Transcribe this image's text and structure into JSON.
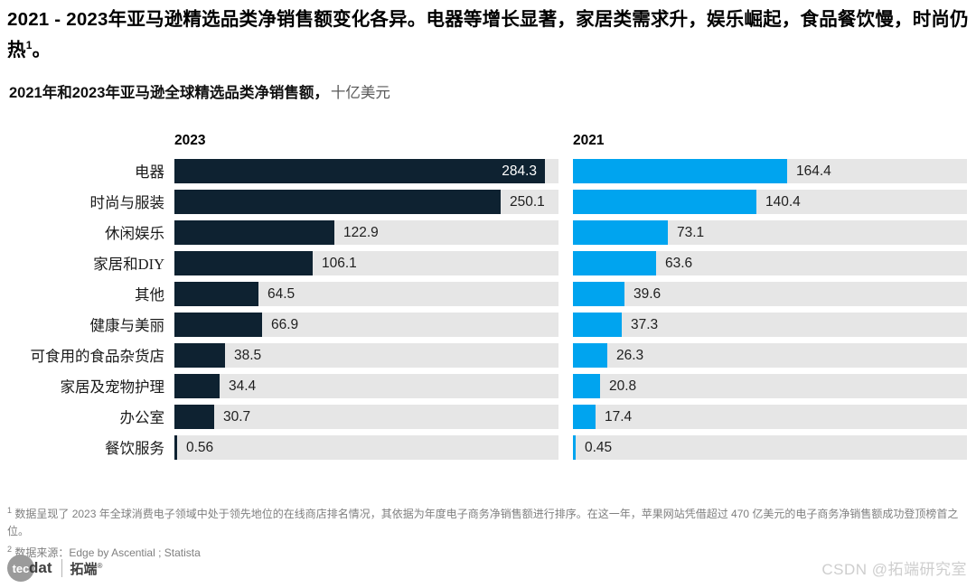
{
  "header": {
    "title_text": "2021 - 2023年亚马逊精选品类净销售额变化各异。电器等增长显著，家居类需求升，娱乐崛起，食品餐饮慢，时尚仍热",
    "title_superscript": "1",
    "title_suffix": "。",
    "subtitle_bold": "2021年和2023年亚马逊全球精选品类净销售额，",
    "subtitle_unit": "十亿美元"
  },
  "chart_data": {
    "type": "bar",
    "orientation": "horizontal",
    "title": "2021年和2023年亚马逊全球精选品类净销售额",
    "unit_label": "十亿美元",
    "categories": [
      "电器",
      "时尚与服装",
      "休闲娱乐",
      "家居和DIY",
      "其他",
      "健康与美丽",
      "可食用的食品杂货店",
      "家居及宠物护理",
      "办公室",
      "餐饮服务"
    ],
    "series": [
      {
        "name": "2023",
        "color": "#0e2231",
        "values": [
          284.3,
          250.1,
          122.9,
          106.1,
          64.5,
          66.9,
          38.5,
          34.4,
          30.7,
          0.56
        ]
      },
      {
        "name": "2021",
        "color": "#00a4ef",
        "values": [
          164.4,
          140.4,
          73.1,
          63.6,
          39.6,
          37.3,
          26.3,
          20.8,
          17.4,
          0.45
        ]
      }
    ],
    "xlim": [
      0,
      295
    ],
    "value_labels": true,
    "grid": false,
    "legend_position": "column-headers"
  },
  "footnotes": {
    "note1_sup": "1",
    "note1_text": "数据呈现了 2023 年全球消费电子领域中处于领先地位的在线商店排名情况，其依据为年度电子商务净销售额进行排序。在这一年，苹果网站凭借超过 470 亿美元的电子商务净销售额成功登顶榜首之位。",
    "note2_sup": "2",
    "note2_text": "数据来源：Edge by Ascential ; Statista"
  },
  "footer": {
    "logo_circle_text": "tec",
    "logo_text": "dat",
    "logo_brand": "拓端",
    "logo_reg": "®",
    "watermark": "CSDN @拓端研究室"
  },
  "colors": {
    "bar_2023": "#0e2231",
    "bar_2021": "#00a4ef",
    "track": "#e6e6e6",
    "value_inside": "#ffffff"
  }
}
